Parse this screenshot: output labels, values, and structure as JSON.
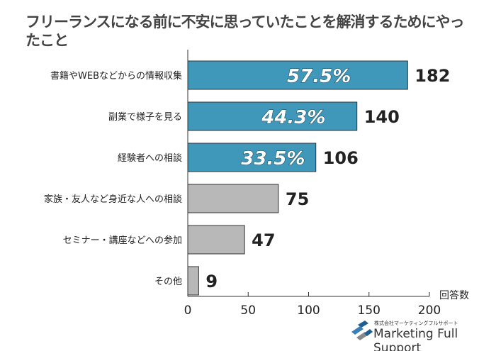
{
  "title": "フリーランスになる前に不安に思っていたことを解消するためにやったこと",
  "chart_data": {
    "type": "bar",
    "orientation": "horizontal",
    "categories": [
      "書籍やWEBなどからの情報収集",
      "副業で様子を見る",
      "経験者への相談",
      "家族・友人など身近な人への相談",
      "セミナー・講座などへの参加",
      "その他"
    ],
    "values": [
      182,
      140,
      106,
      75,
      47,
      9
    ],
    "percent_labels": [
      "57.5%",
      "44.3%",
      "33.5%",
      "",
      "",
      ""
    ],
    "xlabel": "回答数",
    "xlim": [
      0,
      200
    ],
    "xticks": [
      "0",
      "50",
      "100",
      "150",
      "200"
    ],
    "grid": false,
    "colors": {
      "highlight": "#3f97b9",
      "other": "#b8b8b8",
      "border": "#333333"
    }
  },
  "logo": {
    "small": "株式会社マーケティングフルサポート",
    "main": "Marketing Full Support"
  }
}
